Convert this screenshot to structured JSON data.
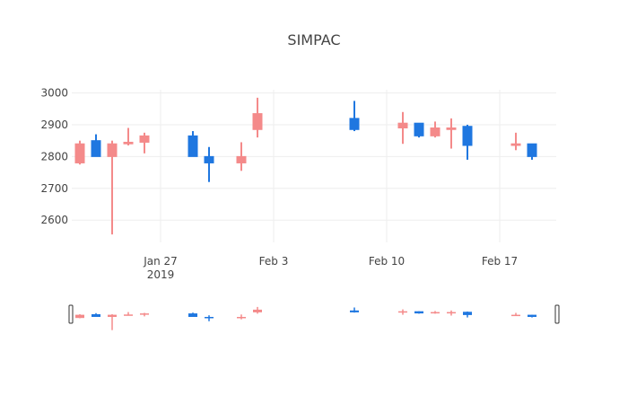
{
  "chart_data": {
    "type": "candlestick",
    "title": "SIMPAC",
    "ylim": [
      2530,
      3010
    ],
    "xlim": [
      "2019-01-22",
      "2019-02-20"
    ],
    "yticks": [
      2600,
      2700,
      2800,
      2900,
      3000
    ],
    "xticks": [
      {
        "date": "2019-01-27",
        "label": "Jan 27",
        "sublabel": "2019"
      },
      {
        "date": "2019-02-03",
        "label": "Feb 3",
        "sublabel": ""
      },
      {
        "date": "2019-02-10",
        "label": "Feb 10",
        "sublabel": ""
      },
      {
        "date": "2019-02-17",
        "label": "Feb 17",
        "sublabel": ""
      }
    ],
    "increasing_color": "#1f77e0",
    "decreasing_color": "#f48a8a",
    "rangeslider": true,
    "candles": [
      {
        "date": "2019-01-22",
        "open": 2840,
        "high": 2850,
        "low": 2775,
        "close": 2780
      },
      {
        "date": "2019-01-23",
        "open": 2800,
        "high": 2870,
        "low": 2800,
        "close": 2850
      },
      {
        "date": "2019-01-24",
        "open": 2840,
        "high": 2850,
        "low": 2555,
        "close": 2800
      },
      {
        "date": "2019-01-25",
        "open": 2845,
        "high": 2890,
        "low": 2835,
        "close": 2840
      },
      {
        "date": "2019-01-26",
        "open": 2865,
        "high": 2875,
        "low": 2810,
        "close": 2845
      },
      {
        "date": "2019-01-29",
        "open": 2800,
        "high": 2880,
        "low": 2800,
        "close": 2865
      },
      {
        "date": "2019-01-30",
        "open": 2780,
        "high": 2830,
        "low": 2720,
        "close": 2800
      },
      {
        "date": "2019-02-01",
        "open": 2800,
        "high": 2845,
        "low": 2755,
        "close": 2780
      },
      {
        "date": "2019-02-02",
        "open": 2935,
        "high": 2985,
        "low": 2860,
        "close": 2885
      },
      {
        "date": "2019-02-08",
        "open": 2885,
        "high": 2975,
        "low": 2880,
        "close": 2920
      },
      {
        "date": "2019-02-11",
        "open": 2905,
        "high": 2940,
        "low": 2840,
        "close": 2890
      },
      {
        "date": "2019-02-12",
        "open": 2865,
        "high": 2905,
        "low": 2860,
        "close": 2905
      },
      {
        "date": "2019-02-13",
        "open": 2890,
        "high": 2910,
        "low": 2860,
        "close": 2865
      },
      {
        "date": "2019-02-14",
        "open": 2890,
        "high": 2920,
        "low": 2825,
        "close": 2885
      },
      {
        "date": "2019-02-15",
        "open": 2835,
        "high": 2900,
        "low": 2790,
        "close": 2895
      },
      {
        "date": "2019-02-18",
        "open": 2840,
        "high": 2875,
        "low": 2820,
        "close": 2835
      },
      {
        "date": "2019-02-19",
        "open": 2800,
        "high": 2840,
        "low": 2790,
        "close": 2840
      }
    ]
  }
}
